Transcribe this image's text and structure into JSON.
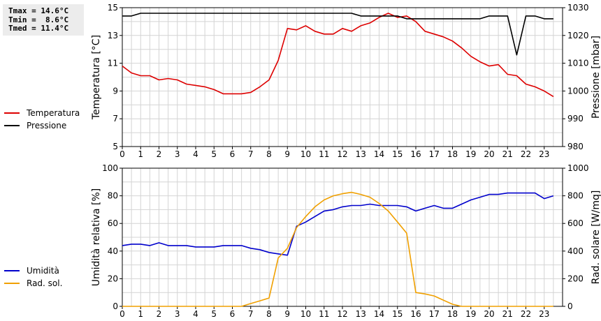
{
  "stats": {
    "tmax": "Tmax = 14.6°C",
    "tmin": "Tmin =  8.6°C",
    "tmed": "Tmed = 11.4°C"
  },
  "chart_data": [
    {
      "type": "line",
      "ylabel": "Temperatura [°C]",
      "y2label": "Pressione [mbar]",
      "ylim": [
        5,
        15
      ],
      "y_ticks": [
        5,
        7,
        9,
        11,
        13,
        15
      ],
      "y2lim": [
        980,
        1030
      ],
      "y2_ticks": [
        980,
        990,
        1000,
        1010,
        1020,
        1030
      ],
      "xlim": [
        0,
        24
      ],
      "x_ticks": [
        0,
        1,
        2,
        3,
        4,
        5,
        6,
        7,
        8,
        9,
        10,
        11,
        12,
        13,
        14,
        15,
        16,
        17,
        18,
        19,
        20,
        21,
        22,
        23
      ],
      "grid": true,
      "legend_position": "left",
      "series": [
        {
          "name": "Temperatura",
          "axis": "left",
          "color": "#dd0000",
          "x": [
            0,
            0.5,
            1,
            1.5,
            2,
            2.5,
            3,
            3.5,
            4,
            4.5,
            5,
            5.5,
            6,
            6.5,
            7,
            7.5,
            8,
            8.5,
            9,
            9.5,
            10,
            10.5,
            11,
            11.5,
            12,
            12.5,
            13,
            13.5,
            14,
            14.5,
            15,
            15.5,
            16,
            16.5,
            17,
            17.5,
            18,
            18.5,
            19,
            19.5,
            20,
            20.5,
            21,
            21.5,
            22,
            22.5,
            23,
            23.5
          ],
          "values": [
            10.8,
            10.3,
            10.1,
            10.1,
            9.8,
            9.9,
            9.8,
            9.5,
            9.4,
            9.3,
            9.1,
            8.8,
            8.8,
            8.8,
            8.9,
            9.3,
            9.8,
            11.2,
            13.5,
            13.4,
            13.7,
            13.3,
            13.1,
            13.1,
            13.5,
            13.3,
            13.7,
            13.9,
            14.3,
            14.6,
            14.3,
            14.4,
            14.0,
            13.3,
            13.1,
            12.9,
            12.6,
            12.1,
            11.5,
            11.1,
            10.8,
            10.9,
            10.2,
            10.1,
            9.5,
            9.3,
            9.0,
            8.6
          ]
        },
        {
          "name": "Pressione",
          "axis": "right",
          "color": "#000000",
          "x": [
            0,
            0.5,
            1,
            12,
            12.5,
            13,
            13.5,
            15,
            15.5,
            16,
            19,
            19.5,
            20,
            21,
            21.5,
            22,
            22.5,
            23,
            23.5
          ],
          "values": [
            1027,
            1027,
            1028,
            1028,
            1028,
            1027,
            1027,
            1027,
            1026,
            1026,
            1026,
            1026,
            1027,
            1027,
            1013,
            1027,
            1027,
            1026,
            1026
          ]
        }
      ]
    },
    {
      "type": "line",
      "ylabel": "Umidità relativa [%]",
      "y2label": "Rad. solare [W/mq]",
      "ylim": [
        0,
        100
      ],
      "y_ticks": [
        0,
        20,
        40,
        60,
        80,
        100
      ],
      "y2lim": [
        0,
        1000
      ],
      "y2_ticks": [
        0,
        200,
        400,
        600,
        800,
        1000
      ],
      "xlim": [
        0,
        24
      ],
      "x_ticks": [
        0,
        1,
        2,
        3,
        4,
        5,
        6,
        7,
        8,
        9,
        10,
        11,
        12,
        13,
        14,
        15,
        16,
        17,
        18,
        19,
        20,
        21,
        22,
        23
      ],
      "grid": true,
      "legend_position": "left",
      "series": [
        {
          "name": "Umidità",
          "axis": "left",
          "color": "#0000cc",
          "x": [
            0,
            0.5,
            1,
            1.5,
            2,
            2.5,
            3,
            3.5,
            4,
            4.5,
            5,
            5.5,
            6,
            6.5,
            7,
            7.5,
            8,
            8.5,
            9,
            9.5,
            10,
            10.5,
            11,
            11.5,
            12,
            12.5,
            13,
            13.5,
            14,
            14.5,
            15,
            15.5,
            16,
            16.5,
            17,
            17.5,
            18,
            18.5,
            19,
            19.5,
            20,
            20.5,
            21,
            21.5,
            22,
            22.5,
            23,
            23.5
          ],
          "values": [
            44,
            45,
            45,
            44,
            46,
            44,
            44,
            44,
            43,
            43,
            43,
            44,
            44,
            44,
            42,
            41,
            39,
            38,
            37,
            58,
            61,
            65,
            69,
            70,
            72,
            73,
            73,
            74,
            73,
            73,
            73,
            72,
            69,
            71,
            73,
            71,
            71,
            74,
            77,
            79,
            81,
            81,
            82,
            82,
            82,
            82,
            78,
            80
          ]
        },
        {
          "name": "Rad. sol.",
          "axis": "right",
          "color": "#f0a000",
          "x": [
            0,
            6,
            6.5,
            7,
            7.5,
            8,
            8.5,
            9,
            9.5,
            10,
            10.5,
            11,
            11.5,
            12,
            12.5,
            13,
            13.5,
            14,
            14.5,
            15,
            15.5,
            16,
            16.5,
            17,
            17.5,
            18,
            18.5,
            23.5
          ],
          "values": [
            0,
            0,
            0,
            20,
            40,
            60,
            350,
            420,
            570,
            650,
            720,
            770,
            800,
            815,
            825,
            810,
            790,
            745,
            690,
            610,
            530,
            100,
            90,
            75,
            45,
            15,
            0,
            0
          ]
        }
      ]
    }
  ]
}
